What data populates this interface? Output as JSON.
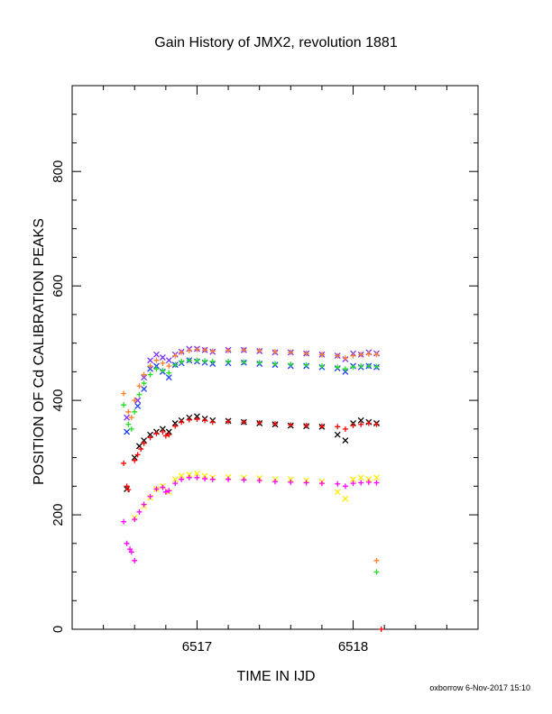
{
  "chart_data": {
    "type": "scatter",
    "title": "Gain History of JMX2, revolution 1881",
    "xlabel": "TIME IN IJD",
    "ylabel": "POSITION OF Cd CALIBRATION PEAKS",
    "xlim": [
      6516.2,
      6518.8
    ],
    "ylim": [
      0,
      950
    ],
    "x_ticks": [
      6517,
      6518
    ],
    "y_ticks": [
      0,
      200,
      400,
      600,
      800
    ],
    "grid": false,
    "series": [
      {
        "marker": "x",
        "color": "#7b2ff7",
        "x": [
          6516.55,
          6516.62,
          6516.66,
          6516.7,
          6516.74,
          6516.78,
          6516.82,
          6516.86,
          6516.9,
          6516.95,
          6517.0,
          6517.05,
          6517.1,
          6517.2,
          6517.3,
          6517.4,
          6517.5,
          6517.6,
          6517.7,
          6517.8,
          6517.9,
          6517.95,
          6518.0,
          6518.05,
          6518.1,
          6518.15
        ],
        "y": [
          370,
          400,
          440,
          470,
          480,
          475,
          470,
          480,
          485,
          490,
          490,
          488,
          485,
          488,
          488,
          486,
          484,
          484,
          482,
          480,
          478,
          472,
          482,
          480,
          484,
          482
        ]
      },
      {
        "marker": "x",
        "color": "#1e3cff",
        "x": [
          6516.55,
          6516.62,
          6516.66,
          6516.7,
          6516.74,
          6516.78,
          6516.82,
          6516.86,
          6516.9,
          6516.95,
          6517.0,
          6517.05,
          6517.1,
          6517.2,
          6517.3,
          6517.4,
          6517.5,
          6517.6,
          6517.7,
          6517.8,
          6517.9,
          6517.95,
          6518.0,
          6518.05,
          6518.1,
          6518.15
        ],
        "y": [
          345,
          390,
          420,
          455,
          460,
          450,
          440,
          462,
          465,
          470,
          468,
          466,
          464,
          465,
          466,
          464,
          462,
          460,
          460,
          458,
          456,
          450,
          460,
          458,
          460,
          458
        ]
      },
      {
        "marker": "+",
        "color": "#ff7f2a",
        "x": [
          6516.53,
          6516.56,
          6516.58,
          6516.6,
          6516.63,
          6516.66,
          6516.7,
          6516.74,
          6516.78,
          6516.82,
          6516.86,
          6516.9,
          6516.95,
          6517.0,
          6517.05,
          6517.1,
          6517.2,
          6517.3,
          6517.4,
          6517.5,
          6517.6,
          6517.7,
          6517.8,
          6517.9,
          6517.95,
          6518.0,
          6518.05,
          6518.1,
          6518.15,
          6518.15
        ],
        "y": [
          412,
          380,
          370,
          400,
          425,
          445,
          460,
          470,
          465,
          460,
          478,
          484,
          487,
          489,
          488,
          486,
          487,
          488,
          487,
          485,
          484,
          482,
          480,
          478,
          474,
          478,
          480,
          481,
          480,
          120
        ]
      },
      {
        "marker": "+",
        "color": "#22dd22",
        "x": [
          6516.53,
          6516.56,
          6516.58,
          6516.6,
          6516.63,
          6516.66,
          6516.7,
          6516.74,
          6516.78,
          6516.82,
          6516.86,
          6516.9,
          6516.95,
          6517.0,
          6517.05,
          6517.1,
          6517.2,
          6517.3,
          6517.4,
          6517.5,
          6517.6,
          6517.7,
          6517.8,
          6517.9,
          6517.95,
          6518.0,
          6518.05,
          6518.1,
          6518.15,
          6518.15
        ],
        "y": [
          392,
          358,
          350,
          380,
          410,
          430,
          445,
          455,
          452,
          448,
          462,
          468,
          470,
          470,
          469,
          468,
          468,
          467,
          466,
          464,
          463,
          462,
          460,
          458,
          455,
          458,
          460,
          460,
          459,
          100
        ]
      },
      {
        "marker": "x",
        "color": "#000000",
        "x": [
          6516.55,
          6516.6,
          6516.63,
          6516.66,
          6516.7,
          6516.74,
          6516.78,
          6516.82,
          6516.86,
          6516.9,
          6516.95,
          6517.0,
          6517.05,
          6517.1,
          6517.2,
          6517.3,
          6517.4,
          6517.5,
          6517.6,
          6517.7,
          6517.8,
          6517.9,
          6517.95,
          6518.0,
          6518.05,
          6518.1,
          6518.15
        ],
        "y": [
          245,
          300,
          320,
          330,
          340,
          345,
          350,
          345,
          360,
          365,
          370,
          372,
          368,
          365,
          364,
          362,
          360,
          358,
          356,
          355,
          354,
          340,
          330,
          360,
          365,
          362,
          360
        ]
      },
      {
        "marker": "+",
        "color": "#ff0000",
        "x": [
          6516.53,
          6516.55,
          6516.56,
          6516.6,
          6516.62,
          6516.64,
          6516.66,
          6516.7,
          6516.74,
          6516.78,
          6516.8,
          6516.82,
          6516.86,
          6516.9,
          6516.95,
          6517.0,
          6517.05,
          6517.1,
          6517.2,
          6517.3,
          6517.4,
          6517.5,
          6517.6,
          6517.7,
          6517.8,
          6517.9,
          6517.95,
          6518.0,
          6518.05,
          6518.1,
          6518.15,
          6518.18
        ],
        "y": [
          290,
          250,
          244,
          295,
          305,
          315,
          325,
          335,
          342,
          345,
          338,
          340,
          355,
          362,
          366,
          367,
          365,
          362,
          363,
          362,
          361,
          359,
          357,
          356,
          355,
          354,
          350,
          356,
          358,
          360,
          358,
          0
        ]
      },
      {
        "marker": "x",
        "color": "#ffee00",
        "x": [
          6516.6,
          6516.66,
          6516.7,
          6516.74,
          6516.78,
          6516.82,
          6516.86,
          6516.9,
          6516.95,
          6517.0,
          6517.05,
          6517.1,
          6517.2,
          6517.3,
          6517.4,
          6517.5,
          6517.6,
          6517.7,
          6517.8,
          6517.9,
          6517.95,
          6518.0,
          6518.05,
          6518.1,
          6518.15
        ],
        "y": [
          195,
          215,
          230,
          245,
          250,
          240,
          262,
          268,
          270,
          272,
          268,
          265,
          266,
          265,
          264,
          262,
          262,
          260,
          258,
          240,
          228,
          262,
          265,
          262,
          265
        ]
      },
      {
        "marker": "+",
        "color": "#ff00ff",
        "x": [
          6516.53,
          6516.55,
          6516.57,
          6516.58,
          6516.6,
          6516.6,
          6516.63,
          6516.66,
          6516.7,
          6516.74,
          6516.78,
          6516.8,
          6516.82,
          6516.86,
          6516.9,
          6516.95,
          6517.0,
          6517.05,
          6517.1,
          6517.2,
          6517.3,
          6517.4,
          6517.5,
          6517.6,
          6517.7,
          6517.8,
          6517.9,
          6517.95,
          6518.0,
          6518.05,
          6518.1,
          6518.15
        ],
        "y": [
          188,
          150,
          140,
          135,
          120,
          192,
          205,
          218,
          232,
          245,
          248,
          240,
          242,
          255,
          262,
          265,
          265,
          263,
          262,
          262,
          261,
          260,
          258,
          257,
          256,
          255,
          254,
          250,
          255,
          256,
          257,
          256
        ]
      }
    ]
  },
  "footer": "oxborrow  6-Nov-2017 15:10"
}
